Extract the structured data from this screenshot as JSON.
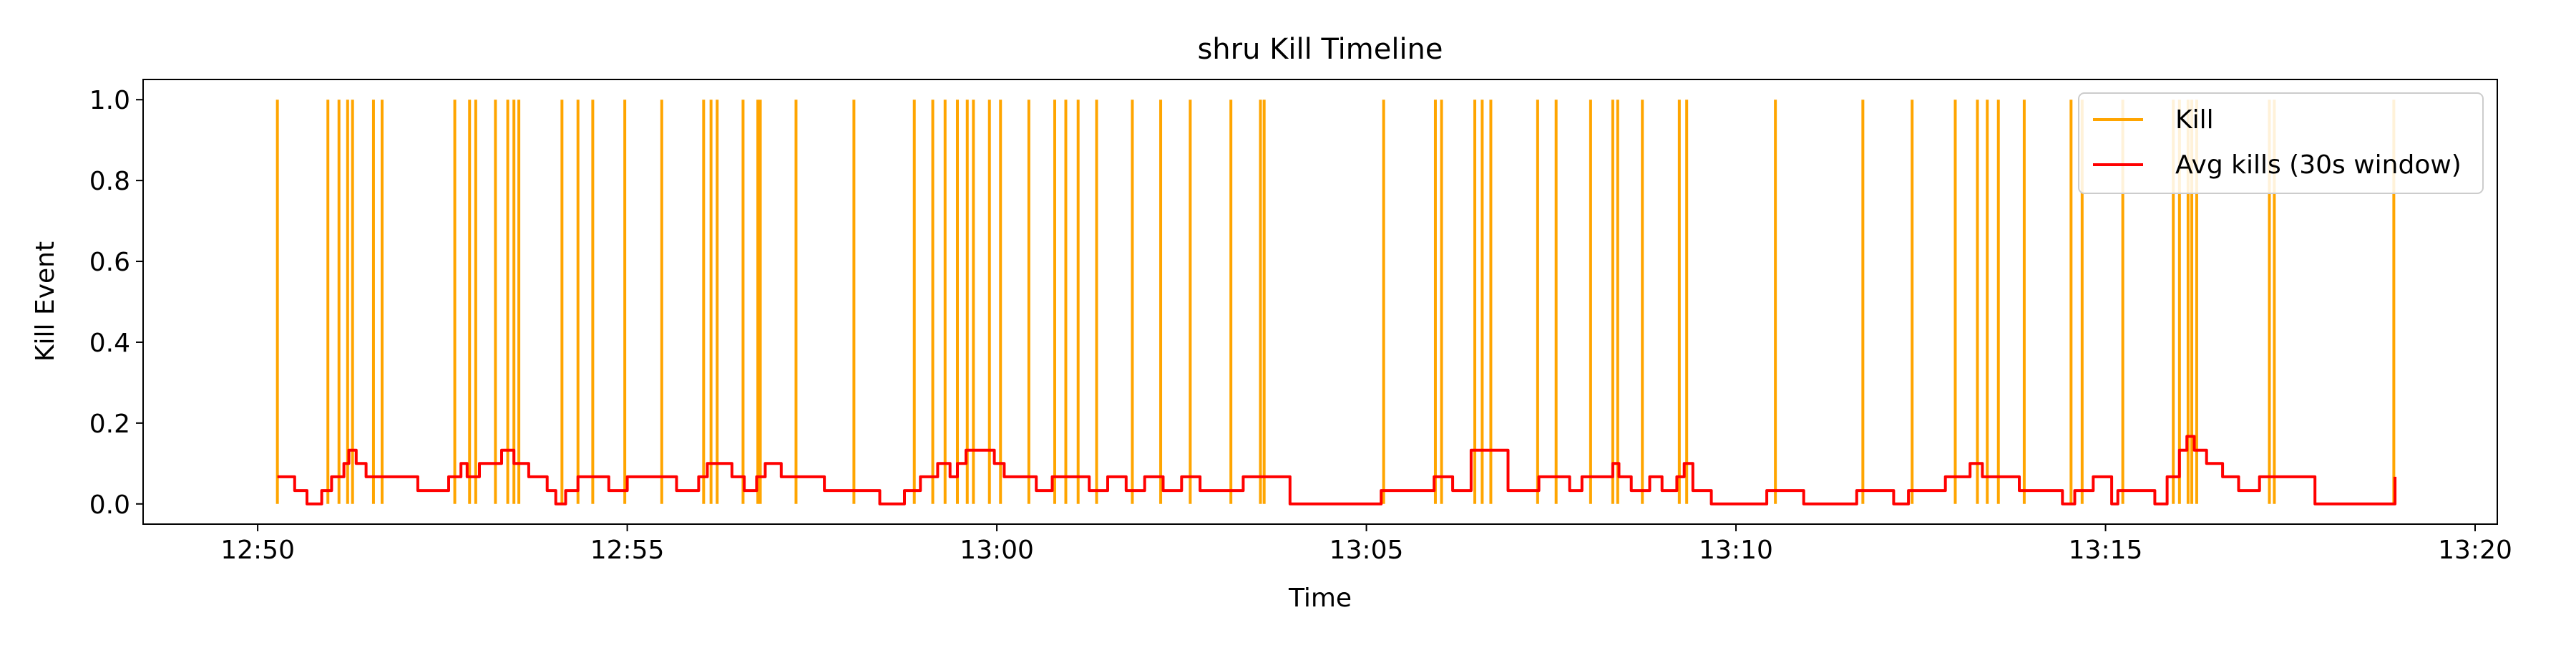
{
  "chart_data": {
    "type": "line",
    "title": "shru Kill Timeline",
    "xlabel": "Time",
    "ylabel": "Kill Event",
    "xlim": [
      "12:48:27",
      "13:20:18"
    ],
    "ylim": [
      -0.05,
      1.05
    ],
    "x_ticks": [
      {
        "label": "12:50",
        "time": "12:50:00"
      },
      {
        "label": "12:55",
        "time": "12:55:00"
      },
      {
        "label": "13:00",
        "time": "13:00:00"
      },
      {
        "label": "13:05",
        "time": "13:05:00"
      },
      {
        "label": "13:10",
        "time": "13:10:00"
      },
      {
        "label": "13:15",
        "time": "13:15:00"
      },
      {
        "label": "13:20",
        "time": "13:20:00"
      }
    ],
    "y_ticks": [
      {
        "label": "0.0",
        "value": 0.0
      },
      {
        "label": "0.2",
        "value": 0.2
      },
      {
        "label": "0.4",
        "value": 0.4
      },
      {
        "label": "0.6",
        "value": 0.6
      },
      {
        "label": "0.8",
        "value": 0.8
      },
      {
        "label": "1.0",
        "value": 1.0
      }
    ],
    "grid": false,
    "legend_position": "top-right",
    "series": [
      {
        "name": "Kill",
        "style": "vertical-lines",
        "color": "#ffa500",
        "value": 1,
        "times": [
          "12:50:16",
          "12:50:57",
          "12:51:06",
          "12:51:13",
          "12:51:17",
          "12:51:34",
          "12:51:41",
          "12:52:40",
          "12:52:52",
          "12:52:57",
          "12:53:13",
          "12:53:23",
          "12:53:28",
          "12:53:32",
          "12:54:07",
          "12:54:20",
          "12:54:32",
          "12:54:58",
          "12:55:28",
          "12:56:02",
          "12:56:08",
          "12:56:13",
          "12:56:34",
          "12:56:46",
          "12:56:48",
          "12:57:17",
          "12:58:04",
          "12:58:53",
          "12:59:08",
          "12:59:18",
          "12:59:28",
          "12:59:36",
          "12:59:41",
          "12:59:54",
          "13:00:03",
          "13:00:26",
          "13:00:47",
          "13:00:56",
          "13:01:06",
          "13:01:21",
          "13:01:50",
          "13:02:13",
          "13:02:37",
          "13:03:10",
          "13:03:34",
          "13:03:37",
          "13:05:14",
          "13:05:56",
          "13:06:01",
          "13:06:28",
          "13:06:34",
          "13:06:41",
          "13:07:19",
          "13:07:34",
          "13:08:02",
          "13:08:20",
          "13:08:24",
          "13:08:44",
          "13:09:14",
          "13:09:20",
          "13:10:32",
          "13:11:43",
          "13:12:23",
          "13:12:58",
          "13:13:16",
          "13:13:24",
          "13:13:33",
          "13:13:54",
          "13:14:32",
          "13:14:41",
          "13:15:14",
          "13:15:55",
          "13:16:00",
          "13:16:07",
          "13:16:10",
          "13:16:14",
          "13:17:13",
          "13:17:17",
          "13:18:54"
        ]
      },
      {
        "name": "Avg kills (30s window)",
        "style": "line",
        "color": "#ff0000",
        "window_seconds": 30,
        "points": [
          [
            "12:50:16",
            0.067
          ],
          [
            "12:50:30",
            0.033
          ],
          [
            "12:50:40",
            0.0
          ],
          [
            "12:50:52",
            0.033
          ],
          [
            "12:51:00",
            0.067
          ],
          [
            "12:51:10",
            0.1
          ],
          [
            "12:51:14",
            0.133
          ],
          [
            "12:51:20",
            0.1
          ],
          [
            "12:51:28",
            0.067
          ],
          [
            "12:51:40",
            0.067
          ],
          [
            "12:52:10",
            0.033
          ],
          [
            "12:52:35",
            0.067
          ],
          [
            "12:52:45",
            0.1
          ],
          [
            "12:52:50",
            0.067
          ],
          [
            "12:53:00",
            0.1
          ],
          [
            "12:53:10",
            0.1
          ],
          [
            "12:53:18",
            0.133
          ],
          [
            "12:53:28",
            0.1
          ],
          [
            "12:53:40",
            0.067
          ],
          [
            "12:53:55",
            0.033
          ],
          [
            "12:54:02",
            0.0
          ],
          [
            "12:54:10",
            0.033
          ],
          [
            "12:54:20",
            0.067
          ],
          [
            "12:54:45",
            0.033
          ],
          [
            "12:55:00",
            0.067
          ],
          [
            "12:55:20",
            0.067
          ],
          [
            "12:55:40",
            0.033
          ],
          [
            "12:55:58",
            0.067
          ],
          [
            "12:56:05",
            0.1
          ],
          [
            "12:56:25",
            0.067
          ],
          [
            "12:56:35",
            0.033
          ],
          [
            "12:56:45",
            0.067
          ],
          [
            "12:56:52",
            0.1
          ],
          [
            "12:57:05",
            0.067
          ],
          [
            "12:57:20",
            0.067
          ],
          [
            "12:57:40",
            0.033
          ],
          [
            "12:58:00",
            0.033
          ],
          [
            "12:58:25",
            0.0
          ],
          [
            "12:58:45",
            0.033
          ],
          [
            "12:58:58",
            0.067
          ],
          [
            "12:59:12",
            0.1
          ],
          [
            "12:59:22",
            0.067
          ],
          [
            "12:59:28",
            0.1
          ],
          [
            "12:59:35",
            0.133
          ],
          [
            "12:59:58",
            0.1
          ],
          [
            "13:00:06",
            0.067
          ],
          [
            "13:00:20",
            0.067
          ],
          [
            "13:00:32",
            0.033
          ],
          [
            "13:00:45",
            0.067
          ],
          [
            "13:01:02",
            0.067
          ],
          [
            "13:01:15",
            0.033
          ],
          [
            "13:01:30",
            0.067
          ],
          [
            "13:01:45",
            0.033
          ],
          [
            "13:02:00",
            0.067
          ],
          [
            "13:02:15",
            0.033
          ],
          [
            "13:02:30",
            0.067
          ],
          [
            "13:02:45",
            0.033
          ],
          [
            "13:03:00",
            0.033
          ],
          [
            "13:03:20",
            0.067
          ],
          [
            "13:03:58",
            0.0
          ],
          [
            "13:05:00",
            0.0
          ],
          [
            "13:05:12",
            0.033
          ],
          [
            "13:05:40",
            0.033
          ],
          [
            "13:05:55",
            0.067
          ],
          [
            "13:06:10",
            0.033
          ],
          [
            "13:06:25",
            0.133
          ],
          [
            "13:06:46",
            0.133
          ],
          [
            "13:06:55",
            0.033
          ],
          [
            "13:07:10",
            0.033
          ],
          [
            "13:07:20",
            0.067
          ],
          [
            "13:07:45",
            0.033
          ],
          [
            "13:07:55",
            0.067
          ],
          [
            "13:08:10",
            0.067
          ],
          [
            "13:08:20",
            0.1
          ],
          [
            "13:08:25",
            0.067
          ],
          [
            "13:08:35",
            0.033
          ],
          [
            "13:08:50",
            0.067
          ],
          [
            "13:09:00",
            0.033
          ],
          [
            "13:09:12",
            0.067
          ],
          [
            "13:09:18",
            0.1
          ],
          [
            "13:09:25",
            0.033
          ],
          [
            "13:09:40",
            0.0
          ],
          [
            "13:10:25",
            0.033
          ],
          [
            "13:10:55",
            0.0
          ],
          [
            "13:11:38",
            0.033
          ],
          [
            "13:12:08",
            0.0
          ],
          [
            "13:12:20",
            0.033
          ],
          [
            "13:12:50",
            0.067
          ],
          [
            "13:13:10",
            0.1
          ],
          [
            "13:13:20",
            0.067
          ],
          [
            "13:13:30",
            0.067
          ],
          [
            "13:13:50",
            0.033
          ],
          [
            "13:14:10",
            0.033
          ],
          [
            "13:14:25",
            0.0
          ],
          [
            "13:14:35",
            0.033
          ],
          [
            "13:14:50",
            0.067
          ],
          [
            "13:15:05",
            0.0
          ],
          [
            "13:15:10",
            0.033
          ],
          [
            "13:15:40",
            0.0
          ],
          [
            "13:15:50",
            0.067
          ],
          [
            "13:16:00",
            0.133
          ],
          [
            "13:16:06",
            0.167
          ],
          [
            "13:16:12",
            0.133
          ],
          [
            "13:16:22",
            0.1
          ],
          [
            "13:16:35",
            0.067
          ],
          [
            "13:16:48",
            0.033
          ],
          [
            "13:17:05",
            0.067
          ],
          [
            "13:17:40",
            0.067
          ],
          [
            "13:17:50",
            0.0
          ],
          [
            "13:18:40",
            0.0
          ],
          [
            "13:18:55",
            0.067
          ]
        ]
      }
    ]
  }
}
